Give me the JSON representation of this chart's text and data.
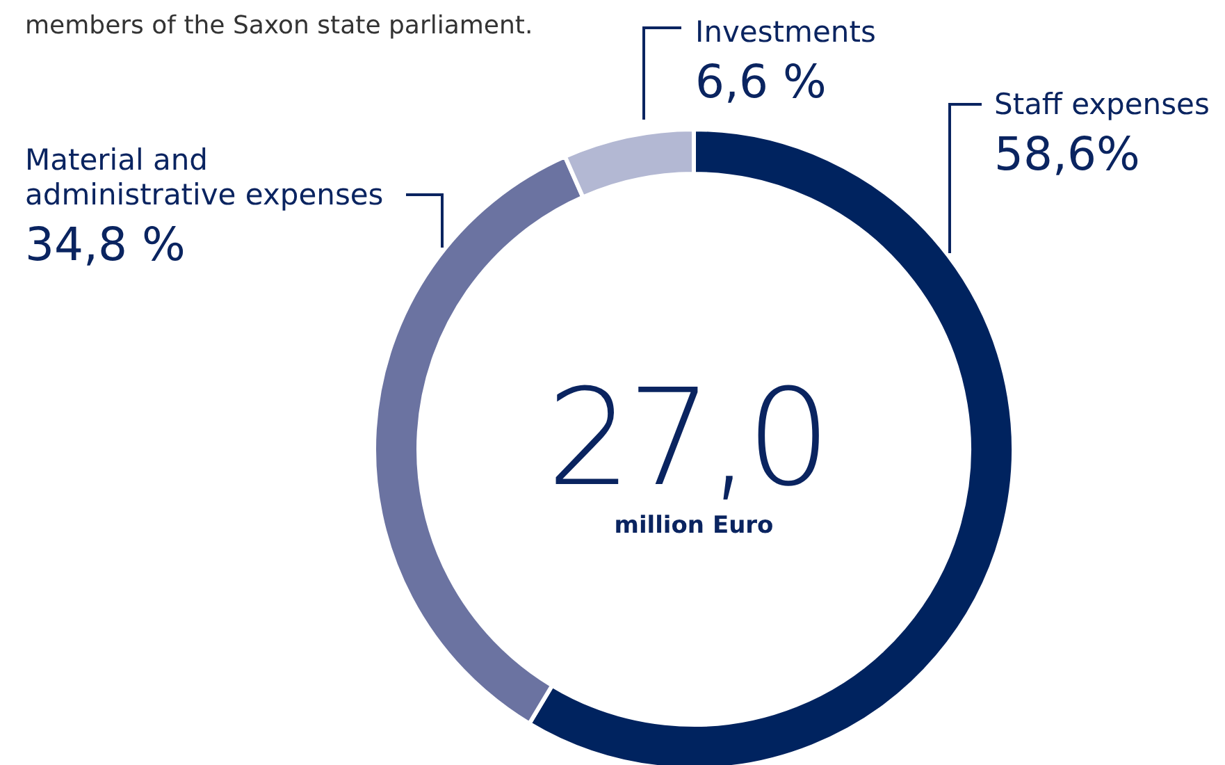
{
  "chart_data": {
    "type": "donut",
    "categories": [
      "Staff expenses",
      "Material and administrative expenses",
      "Investments"
    ],
    "values": [
      58.6,
      34.8,
      6.6
    ],
    "value_labels": [
      "58,6%",
      "34,8 %",
      "6,6 %"
    ],
    "colors": [
      "#00235f",
      "#6b73a1",
      "#b3b8d3"
    ],
    "annotations": [
      "27,0",
      "million Euro",
      "members of the Saxon state parliament."
    ]
  }
}
